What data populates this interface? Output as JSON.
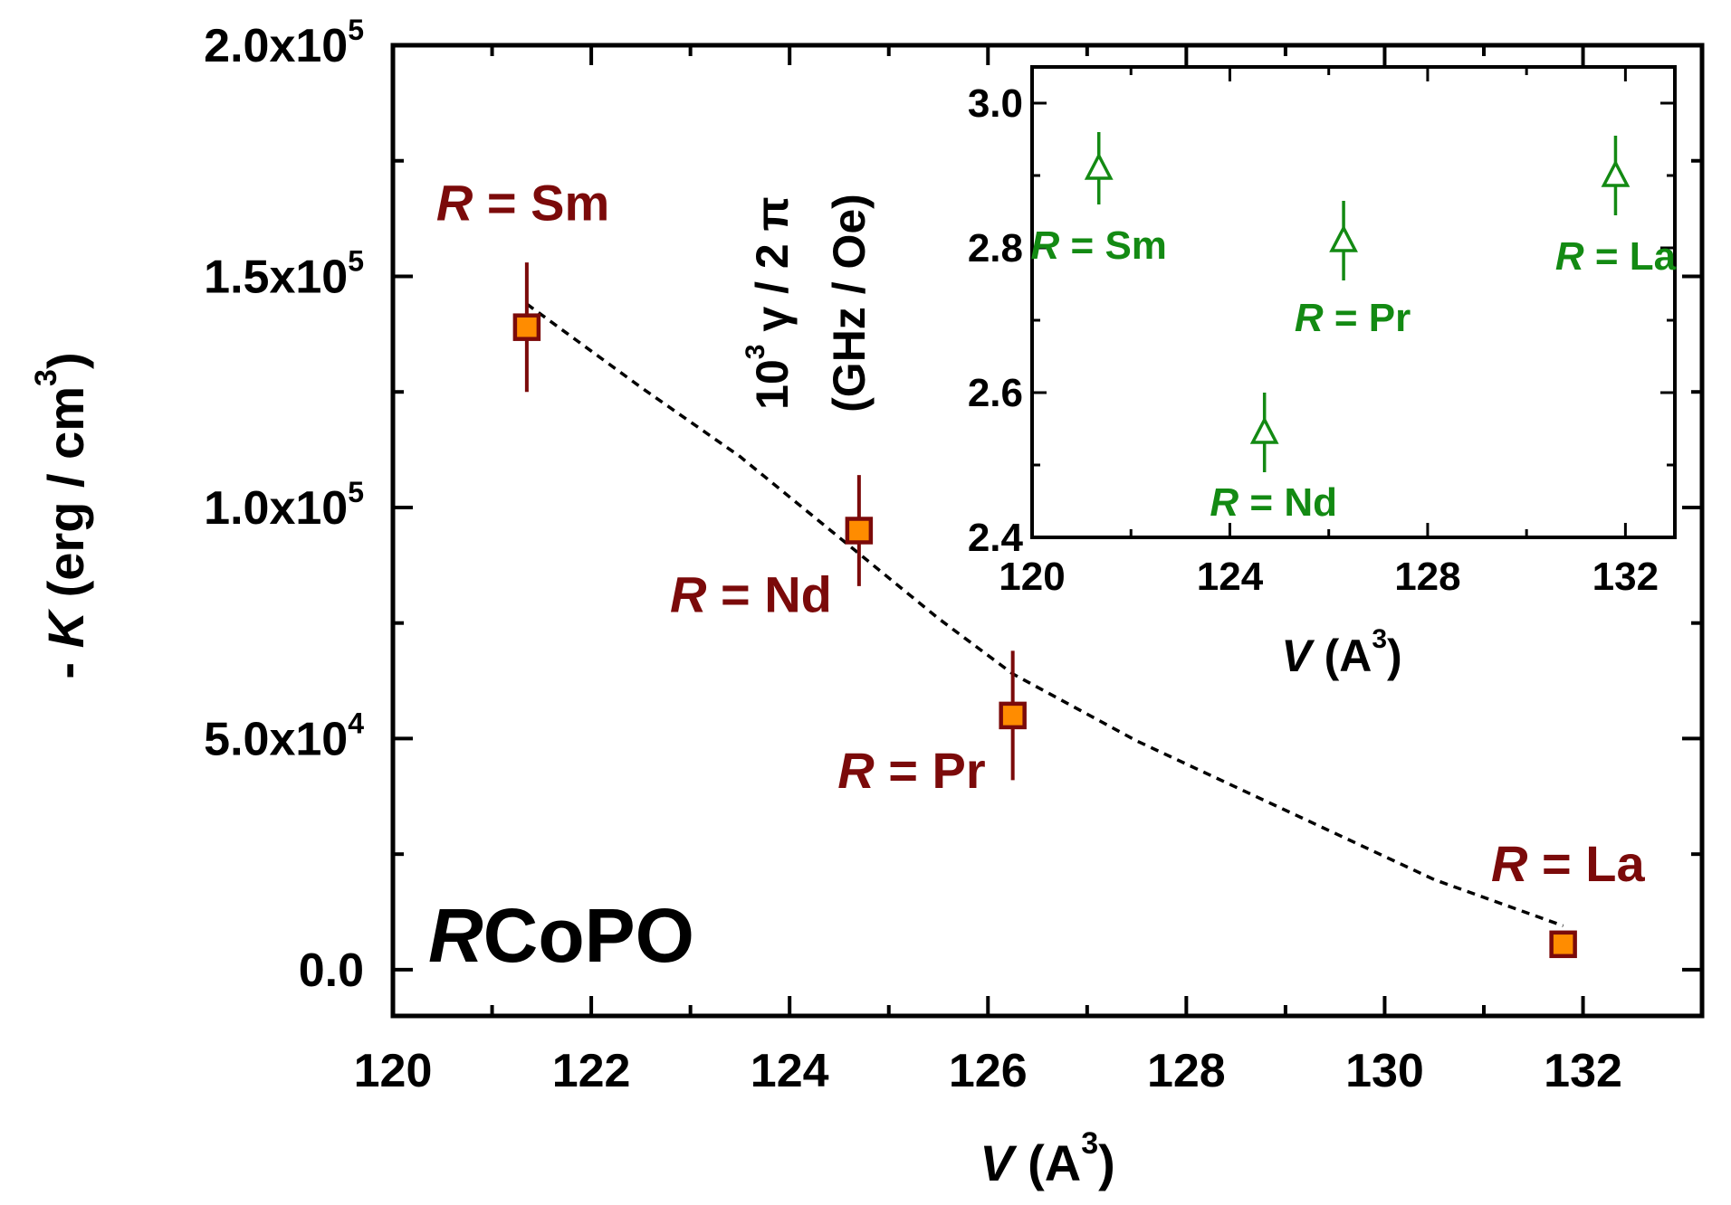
{
  "chart_data": [
    {
      "type": "scatter",
      "name": "main",
      "sample_label": {
        "italic": "R",
        "rest": "CoPO"
      },
      "xlabel": {
        "italic": "V",
        "rest": " (A",
        "sup": "3",
        "close": ")"
      },
      "ylabel": {
        "prefix": "- ",
        "italic": "K",
        "rest": " (erg / cm",
        "sup": "3",
        "close": ")"
      },
      "xlim": [
        120,
        133.2
      ],
      "ylim": [
        -10000,
        200000
      ],
      "xticks": [
        120,
        122,
        124,
        126,
        128,
        130,
        132
      ],
      "xtick_labels": [
        "120",
        "122",
        "124",
        "126",
        "128",
        "130",
        "132"
      ],
      "yticks": [
        0,
        50000,
        100000,
        150000,
        200000
      ],
      "ytick_labels": [
        {
          "mant": "0.0",
          "exp": ""
        },
        {
          "mant": "5.0x10",
          "exp": "4"
        },
        {
          "mant": "1.0x10",
          "exp": "5"
        },
        {
          "mant": "1.5x10",
          "exp": "5"
        },
        {
          "mant": "2.0x10",
          "exp": "5"
        }
      ],
      "points": [
        {
          "label_italic": "R",
          "label_rest": " = Sm",
          "x": 121.35,
          "y": 139000,
          "err": 14000
        },
        {
          "label_italic": "R",
          "label_rest": " = Nd",
          "x": 124.7,
          "y": 95000,
          "err": 12000
        },
        {
          "label_italic": "R",
          "label_rest": " = Pr",
          "x": 126.25,
          "y": 55000,
          "err": 14000
        },
        {
          "label_italic": "R",
          "label_rest": " = La",
          "x": 131.8,
          "y": 5500,
          "err": 1000
        }
      ],
      "fit_line": {
        "style": "dotted",
        "x": [
          121.35,
          122.5,
          123.5,
          124.7,
          125.5,
          126.25,
          127.5,
          128.5,
          129.5,
          130.5,
          131.8
        ],
        "y": [
          144000,
          126000,
          111000,
          90000,
          76000,
          64000,
          49500,
          39500,
          29500,
          19500,
          9500
        ]
      },
      "colors": {
        "marker_fill": "#ff8c00",
        "marker_edge": "#7b0a0a",
        "label": "#7b0a0a"
      }
    },
    {
      "type": "scatter",
      "name": "inset",
      "xlabel": {
        "italic": "V",
        "rest": " (A",
        "sup": "3",
        "close": ")"
      },
      "ylabel_line1": {
        "base": "10",
        "sup": "3",
        "rest": " γ / 2 π"
      },
      "ylabel_line2": "(GHz / Oe)",
      "xlim": [
        120,
        133
      ],
      "ylim": [
        2.4,
        3.05
      ],
      "xticks": [
        120,
        124,
        128,
        132
      ],
      "xtick_labels": [
        "120",
        "124",
        "128",
        "132"
      ],
      "yticks": [
        2.4,
        2.6,
        2.8,
        3.0
      ],
      "ytick_labels": [
        "2.4",
        "2.6",
        "2.8",
        "3.0"
      ],
      "points": [
        {
          "label_italic": "R",
          "label_rest": " = Sm",
          "x": 121.35,
          "y": 2.91,
          "err": 0.05
        },
        {
          "label_italic": "R",
          "label_rest": " = Nd",
          "x": 124.7,
          "y": 2.545,
          "err": 0.055
        },
        {
          "label_italic": "R",
          "label_rest": " = Pr",
          "x": 126.3,
          "y": 2.81,
          "err": 0.055
        },
        {
          "label_italic": "R",
          "label_rest": " = La",
          "x": 131.8,
          "y": 2.9,
          "err": 0.055
        }
      ],
      "colors": {
        "marker_edge": "#138a13",
        "label": "#138a13"
      }
    }
  ]
}
